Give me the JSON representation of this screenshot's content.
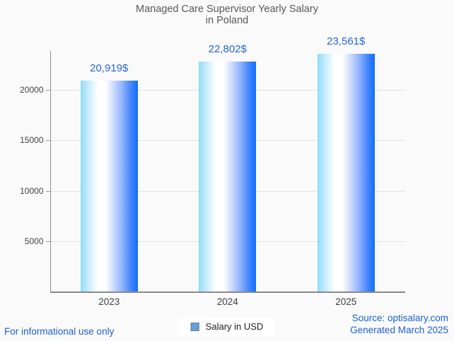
{
  "title": {
    "line1": "Managed Care Supervisor Yearly Salary",
    "line2": "in Poland"
  },
  "chart_data": {
    "type": "bar",
    "title": "Managed Care Supervisor Yearly Salary in Poland",
    "categories": [
      "2023",
      "2024",
      "2025"
    ],
    "values": [
      20919,
      22802,
      23561
    ],
    "value_labels": [
      "20,919$",
      "22,802$",
      "23,561$"
    ],
    "xlabel": "",
    "ylabel": "",
    "ylim": [
      0,
      23900
    ],
    "yticks": [
      5000,
      10000,
      15000,
      20000
    ],
    "grid": true,
    "legend": {
      "label": "Salary in USD",
      "position": "bottom"
    },
    "bar_gradient": [
      "#8edcfa",
      "#ffffff",
      "#0e6dfd"
    ]
  },
  "footer": {
    "left": "For informational use only",
    "source": "Source: optisalary.com",
    "generated": "Generated March 2025"
  },
  "colors": {
    "value_label_blue": "#2566db",
    "footer_blue": "#1b60d8",
    "title_gray": "#58585a",
    "axis_gray": "#8a8a8a",
    "gridline_gray": "#e3e3e3",
    "legend_swatch_fill": "#64a0e0"
  }
}
